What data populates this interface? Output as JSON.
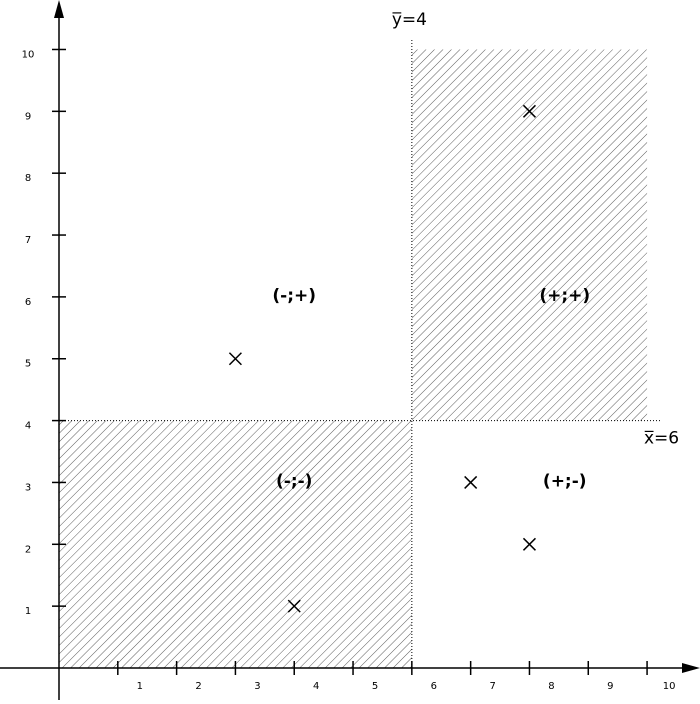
{
  "chart_data": {
    "type": "scatter",
    "x": [
      3,
      4,
      8,
      7,
      8
    ],
    "values": [
      5,
      1,
      9,
      3,
      2
    ],
    "color": "#000000",
    "xlim": [
      0,
      10.9
    ],
    "ylim": [
      0,
      10.8
    ],
    "xticks": [
      1,
      2,
      3,
      4,
      5,
      6,
      7,
      8,
      9,
      10
    ],
    "yticks": [
      1,
      2,
      3,
      4,
      5,
      6,
      7,
      8,
      9,
      10
    ],
    "x_mean": 6,
    "y_mean": 4,
    "x_mean_label": "y̅=4",
    "y_mean_label": "x̅=6",
    "quadrant_labels": [
      "(-;+)",
      "(+;+)",
      "(-;-)",
      "(+;-)"
    ]
  }
}
